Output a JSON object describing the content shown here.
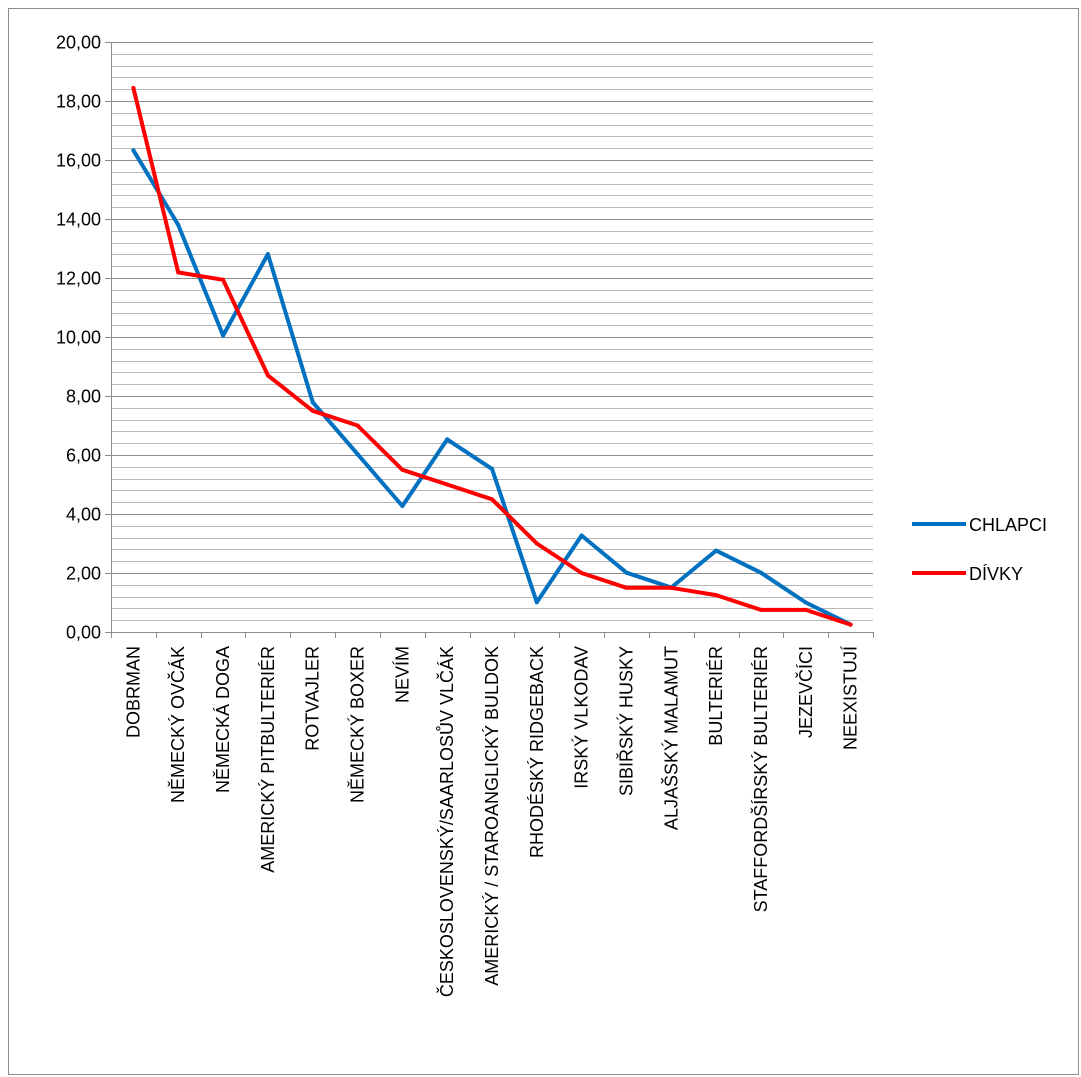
{
  "chart_data": {
    "type": "line",
    "title": "",
    "xlabel": "",
    "ylabel": "",
    "ylim": [
      0,
      20
    ],
    "y_major_step": 2,
    "y_minor_step": 0.4,
    "grid": true,
    "legend_position": "right",
    "y_tick_labels": [
      "0,00",
      "2,00",
      "4,00",
      "6,00",
      "8,00",
      "10,00",
      "12,00",
      "14,00",
      "16,00",
      "18,00",
      "20,00"
    ],
    "categories": [
      "DOBRMAN",
      "NĚMECKÝ OVČÁK",
      "NĚMECKÁ DOGA",
      "AMERICKÝ PITBULTERIÉR",
      "ROTVAJLER",
      "NĚMECKÝ BOXER",
      "NEVÍM",
      "ČESKOSLOVENSKÝ/SAARLOSŮV VLČÁK",
      "AMERICKÝ / STAROANGLICKÝ BULDOK",
      "RHODÉSKÝ RIDGEBACK",
      "IRSKÝ VLKODAV",
      "SIBIŘSKÝ HUSKY",
      "ALJAŠSKÝ MALAMUT",
      "BULTERIÉR",
      "STAFFORDŠÍRSKÝ BULTERIÉR",
      "JEZEVČÍCI",
      "NEEXISTUJÍ"
    ],
    "series": [
      {
        "name": "CHLAPCI",
        "color": "#0070C0",
        "values": [
          16.33,
          13.8,
          10.05,
          12.81,
          7.79,
          6.03,
          4.27,
          6.53,
          5.53,
          1.01,
          3.27,
          2.01,
          1.51,
          2.76,
          2.01,
          1.0,
          0.25
        ]
      },
      {
        "name": "DÍVKY",
        "color": "#FF0000",
        "values": [
          18.44,
          12.19,
          11.94,
          8.7,
          7.5,
          7.0,
          5.5,
          5.0,
          4.5,
          3.0,
          2.0,
          1.5,
          1.5,
          1.25,
          0.75,
          0.75,
          0.25
        ]
      }
    ]
  }
}
